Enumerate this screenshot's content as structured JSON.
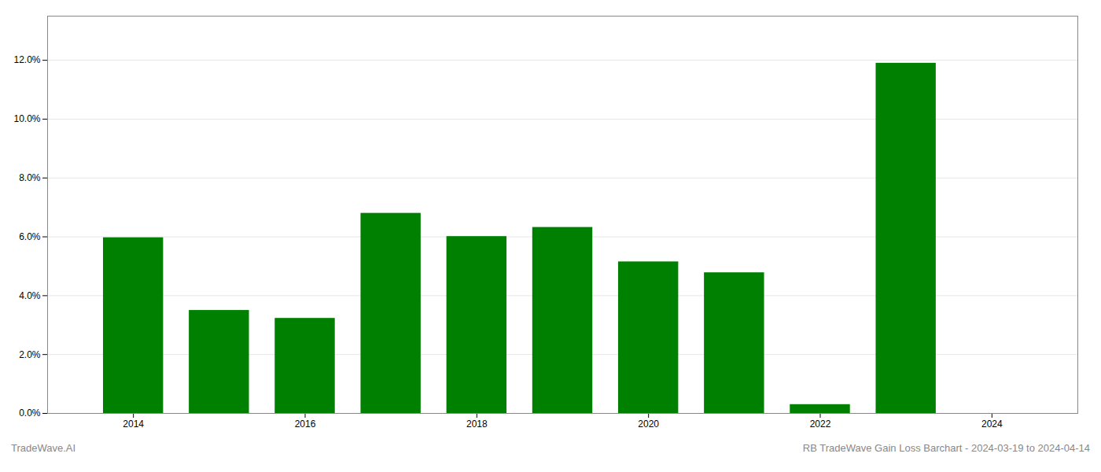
{
  "chart_data": {
    "type": "bar",
    "x": [
      2014,
      2015,
      2016,
      2017,
      2018,
      2019,
      2020,
      2021,
      2022,
      2023
    ],
    "values": [
      0.0597,
      0.035,
      0.0323,
      0.068,
      0.0601,
      0.0632,
      0.0515,
      0.0478,
      0.003,
      0.119
    ],
    "color": "#008000",
    "xlim": [
      2013,
      2025
    ],
    "xticks": [
      2014,
      2016,
      2018,
      2020,
      2022,
      2024
    ],
    "ylim": [
      0.0,
      0.135
    ],
    "yticks": [
      {
        "value": 0.0,
        "label": "0.0%"
      },
      {
        "value": 0.02,
        "label": "2.0%"
      },
      {
        "value": 0.04,
        "label": "4.0%"
      },
      {
        "value": 0.06,
        "label": "6.0%"
      },
      {
        "value": 0.08,
        "label": "8.0%"
      },
      {
        "value": 0.1,
        "label": "10.0%"
      },
      {
        "value": 0.12,
        "label": "12.0%"
      }
    ],
    "grid": true,
    "annotations": [
      "TradeWave.AI",
      "RB TradeWave Gain Loss Barchart - 2024-03-19 to 2024-04-14"
    ]
  }
}
